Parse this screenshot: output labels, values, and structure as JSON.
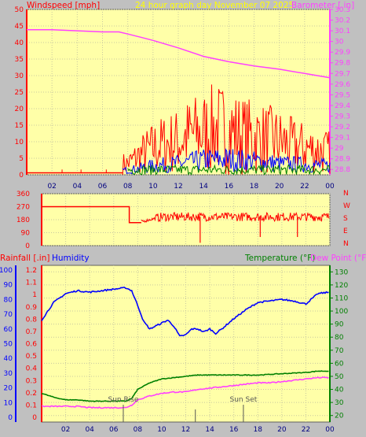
{
  "header": {
    "windspeed_label": "Windspeed [mph]",
    "graph_title": "24 hour graph day   November 07 2025",
    "barometer_label": "Barometer [.in]",
    "rainfall_label": "Rainfall [.in]",
    "humidity_label": "Humidity",
    "temperature_label": "Temperature (°F)",
    "dewpoint_label": "Dew Point (°F)"
  },
  "colors": {
    "panel_bg": "#ffffa8",
    "window_bg": "#c0c0c0",
    "wind_gust": "#ff0000",
    "wind_avg": "#0000ff",
    "wind_low": "#008000",
    "barometer": "#ff40ff",
    "direction": "#ff0000",
    "humidity": "#0000ff",
    "temperature": "#008000",
    "dewpoint": "#ff40ff",
    "rain_axis": "#ff0000",
    "temp_axis": "#008000"
  },
  "compass_letters": [
    "N",
    "W",
    "S",
    "E",
    "N"
  ],
  "x_ticks": [
    "02",
    "04",
    "06",
    "08",
    "10",
    "12",
    "14",
    "16",
    "18",
    "20",
    "22",
    "00"
  ],
  "chart_data": [
    {
      "type": "line",
      "name": "wind-barometer",
      "xlim": [
        0,
        24
      ],
      "y_left": {
        "label": "Windspeed [mph]",
        "lim": [
          0,
          50
        ],
        "ticks": [
          0,
          5,
          10,
          15,
          20,
          25,
          30,
          35,
          40,
          45,
          50
        ]
      },
      "y_right": {
        "label": "Barometer [.in]",
        "lim": [
          28.75,
          30.3
        ],
        "ticks": [
          "28.8",
          "28.9",
          "29",
          "29.1",
          "29.2",
          "29.3",
          "29.4",
          "29.5",
          "29.6",
          "29.7",
          "29.8",
          "29.9",
          "30",
          "30.1",
          "30.2",
          "30.3"
        ]
      },
      "barometer": {
        "x": [
          0,
          2,
          4,
          6,
          7.3,
          8,
          9,
          10,
          12,
          14,
          16,
          18,
          20,
          22,
          24
        ],
        "y": [
          30.11,
          30.11,
          30.1,
          30.09,
          30.09,
          30.07,
          30.04,
          30.01,
          29.94,
          29.86,
          29.81,
          29.77,
          29.74,
          29.7,
          29.66
        ]
      },
      "gust_envelope": {
        "x": [
          8,
          9,
          10,
          11,
          12,
          13,
          14,
          15,
          16,
          17,
          18,
          19,
          20,
          21,
          22,
          23,
          24
        ],
        "y": [
          5,
          9,
          12,
          14,
          15,
          18,
          19,
          21,
          20,
          18,
          17,
          16,
          15,
          13,
          12,
          11,
          10
        ]
      },
      "average_envelope": {
        "x": [
          8,
          10,
          12,
          14,
          16,
          18,
          20,
          22,
          24
        ],
        "y": [
          2,
          4,
          5,
          6.5,
          7,
          6,
          5,
          4.5,
          4
        ]
      },
      "calm_spikes_x": [
        2.8,
        4.3,
        6.3
      ]
    },
    {
      "type": "line",
      "name": "wind-direction",
      "xlim": [
        0,
        24
      ],
      "ylim": [
        0,
        360
      ],
      "y_ticks": [
        0,
        90,
        180,
        270,
        360
      ],
      "direction": {
        "x": [
          0,
          7.3,
          7.3,
          8,
          9,
          10,
          24
        ],
        "y": [
          270,
          270,
          160,
          160,
          180,
          200,
          200
        ]
      },
      "dip_x": [
        13.2,
        18.2,
        21.3
      ]
    },
    {
      "type": "line",
      "name": "rain-humidity-temperature",
      "xlim": [
        0,
        24
      ],
      "y_rain": {
        "label": "Rainfall [.in]",
        "lim": [
          0,
          1.2
        ],
        "ticks": [
          "0",
          "0.1",
          "0.2",
          "0.3",
          "0.4",
          "0.5",
          "0.6",
          "0.7",
          "0.8",
          "0.9",
          "1",
          "1.1",
          "1.2"
        ]
      },
      "y_humidity": {
        "label": "Humidity",
        "lim": [
          0,
          100
        ],
        "ticks": [
          0,
          10,
          20,
          30,
          40,
          50,
          60,
          70,
          80,
          90,
          100
        ]
      },
      "y_temp": {
        "label": "Temperature (°F)",
        "lim": [
          15,
          135
        ],
        "ticks": [
          20,
          30,
          40,
          50,
          60,
          70,
          80,
          90,
          100,
          110,
          120,
          130
        ]
      },
      "humidity": {
        "x": [
          0,
          1,
          2,
          3,
          4,
          5,
          6,
          7,
          7.5,
          8,
          8.5,
          9,
          10,
          10.5,
          11,
          11.5,
          12,
          12.5,
          13,
          13.5,
          14,
          14.5,
          15,
          16,
          17,
          18,
          19,
          20,
          21,
          22,
          23,
          24
        ],
        "y": [
          66,
          78,
          84,
          86,
          85,
          86,
          87,
          88,
          86,
          76,
          65,
          60,
          64,
          66,
          62,
          55,
          56,
          60,
          60,
          58,
          60,
          57,
          60,
          67,
          73,
          78,
          79,
          80,
          79,
          77,
          84,
          85
        ]
      },
      "temperature": {
        "x": [
          0,
          1,
          2,
          3,
          4,
          5,
          6,
          7,
          7.5,
          8,
          9,
          10,
          11,
          12,
          13,
          14,
          16,
          18,
          20,
          22,
          23,
          24
        ],
        "y": [
          37,
          34,
          32,
          32,
          31,
          31,
          31,
          31,
          33,
          40,
          45,
          48,
          49,
          50,
          51,
          51,
          51,
          51,
          52,
          53,
          54,
          54
        ]
      },
      "dewpoint": {
        "x": [
          0,
          1,
          2,
          3,
          4,
          5,
          6,
          7,
          7.5,
          8,
          9,
          10,
          11,
          12,
          13,
          14,
          15,
          16,
          17,
          18,
          19,
          20,
          21,
          22,
          23,
          24
        ],
        "y": [
          27,
          27,
          27,
          27,
          26,
          26,
          26,
          26,
          28,
          32,
          35,
          37,
          38,
          38,
          40,
          41,
          42,
          43,
          44,
          45,
          45,
          46,
          47,
          48,
          49,
          49
        ]
      },
      "rainfall": {
        "x": [
          0,
          24
        ],
        "y": [
          0,
          0
        ]
      },
      "annotations": [
        {
          "label": "Sun Rise",
          "x": 6.8
        },
        {
          "label": "Sun Set",
          "x": 16.8
        }
      ]
    }
  ]
}
